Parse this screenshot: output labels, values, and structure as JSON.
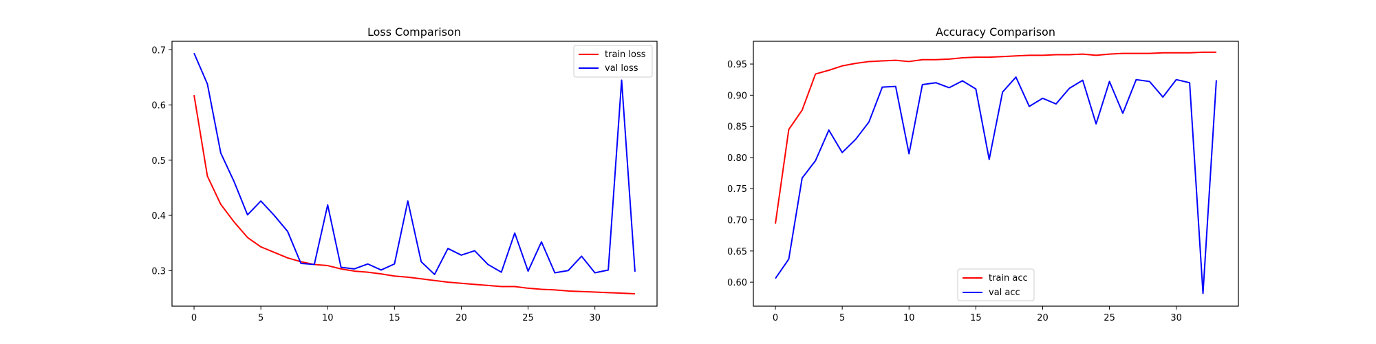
{
  "chart_data": [
    {
      "type": "line",
      "title": "Loss Comparison",
      "xlabel": "",
      "ylabel": "",
      "xlim": [
        -1.65,
        34.65
      ],
      "ylim": [
        0.2355,
        0.7155
      ],
      "xticks": [
        0,
        5,
        10,
        15,
        20,
        25,
        30
      ],
      "yticks": [
        0.3,
        0.4,
        0.5,
        0.6,
        0.7
      ],
      "ytick_labels": [
        "0.3",
        "0.4",
        "0.5",
        "0.6",
        "0.7"
      ],
      "legend_position": "top-right",
      "grid": false,
      "x": [
        0,
        1,
        2,
        3,
        4,
        5,
        6,
        7,
        8,
        9,
        10,
        11,
        12,
        13,
        14,
        15,
        16,
        17,
        18,
        19,
        20,
        21,
        22,
        23,
        24,
        25,
        26,
        27,
        28,
        29,
        30,
        31,
        32,
        33
      ],
      "series": [
        {
          "name": "train loss",
          "color": "#ff0000",
          "values": [
            0.618,
            0.471,
            0.42,
            0.388,
            0.36,
            0.343,
            0.333,
            0.323,
            0.316,
            0.311,
            0.309,
            0.303,
            0.299,
            0.297,
            0.294,
            0.29,
            0.288,
            0.285,
            0.282,
            0.279,
            0.277,
            0.275,
            0.273,
            0.271,
            0.271,
            0.268,
            0.266,
            0.265,
            0.263,
            0.262,
            0.261,
            0.26,
            0.259,
            0.258
          ]
        },
        {
          "name": "val loss",
          "color": "#0000ff",
          "values": [
            0.694,
            0.638,
            0.513,
            0.461,
            0.401,
            0.426,
            0.4,
            0.371,
            0.313,
            0.311,
            0.419,
            0.306,
            0.303,
            0.312,
            0.301,
            0.312,
            0.426,
            0.316,
            0.293,
            0.34,
            0.328,
            0.336,
            0.311,
            0.297,
            0.368,
            0.299,
            0.352,
            0.296,
            0.3,
            0.326,
            0.296,
            0.301,
            0.645,
            0.298
          ]
        }
      ]
    },
    {
      "type": "line",
      "title": "Accuracy Comparison",
      "xlabel": "",
      "ylabel": "",
      "xlim": [
        -1.65,
        34.65
      ],
      "ylim": [
        0.5615,
        0.9865
      ],
      "xticks": [
        0,
        5,
        10,
        15,
        20,
        25,
        30
      ],
      "yticks": [
        0.6,
        0.65,
        0.7,
        0.75,
        0.8,
        0.85,
        0.9,
        0.95
      ],
      "ytick_labels": [
        "0.60",
        "0.65",
        "0.70",
        "0.75",
        "0.80",
        "0.85",
        "0.90",
        "0.95"
      ],
      "legend_position": "lower-center",
      "grid": false,
      "x": [
        0,
        1,
        2,
        3,
        4,
        5,
        6,
        7,
        8,
        9,
        10,
        11,
        12,
        13,
        14,
        15,
        16,
        17,
        18,
        19,
        20,
        21,
        22,
        23,
        24,
        25,
        26,
        27,
        28,
        29,
        30,
        31,
        32,
        33
      ],
      "series": [
        {
          "name": "train acc",
          "color": "#ff0000",
          "values": [
            0.694,
            0.845,
            0.876,
            0.934,
            0.94,
            0.947,
            0.951,
            0.954,
            0.955,
            0.956,
            0.954,
            0.957,
            0.957,
            0.958,
            0.96,
            0.961,
            0.961,
            0.962,
            0.963,
            0.964,
            0.964,
            0.965,
            0.965,
            0.966,
            0.964,
            0.966,
            0.967,
            0.967,
            0.967,
            0.968,
            0.968,
            0.968,
            0.969,
            0.969
          ]
        },
        {
          "name": "val acc",
          "color": "#0000ff",
          "values": [
            0.606,
            0.637,
            0.767,
            0.795,
            0.844,
            0.808,
            0.829,
            0.857,
            0.913,
            0.914,
            0.806,
            0.917,
            0.92,
            0.912,
            0.923,
            0.91,
            0.797,
            0.905,
            0.929,
            0.882,
            0.895,
            0.886,
            0.911,
            0.924,
            0.854,
            0.922,
            0.871,
            0.925,
            0.922,
            0.897,
            0.925,
            0.92,
            0.582,
            0.924
          ]
        }
      ]
    }
  ]
}
